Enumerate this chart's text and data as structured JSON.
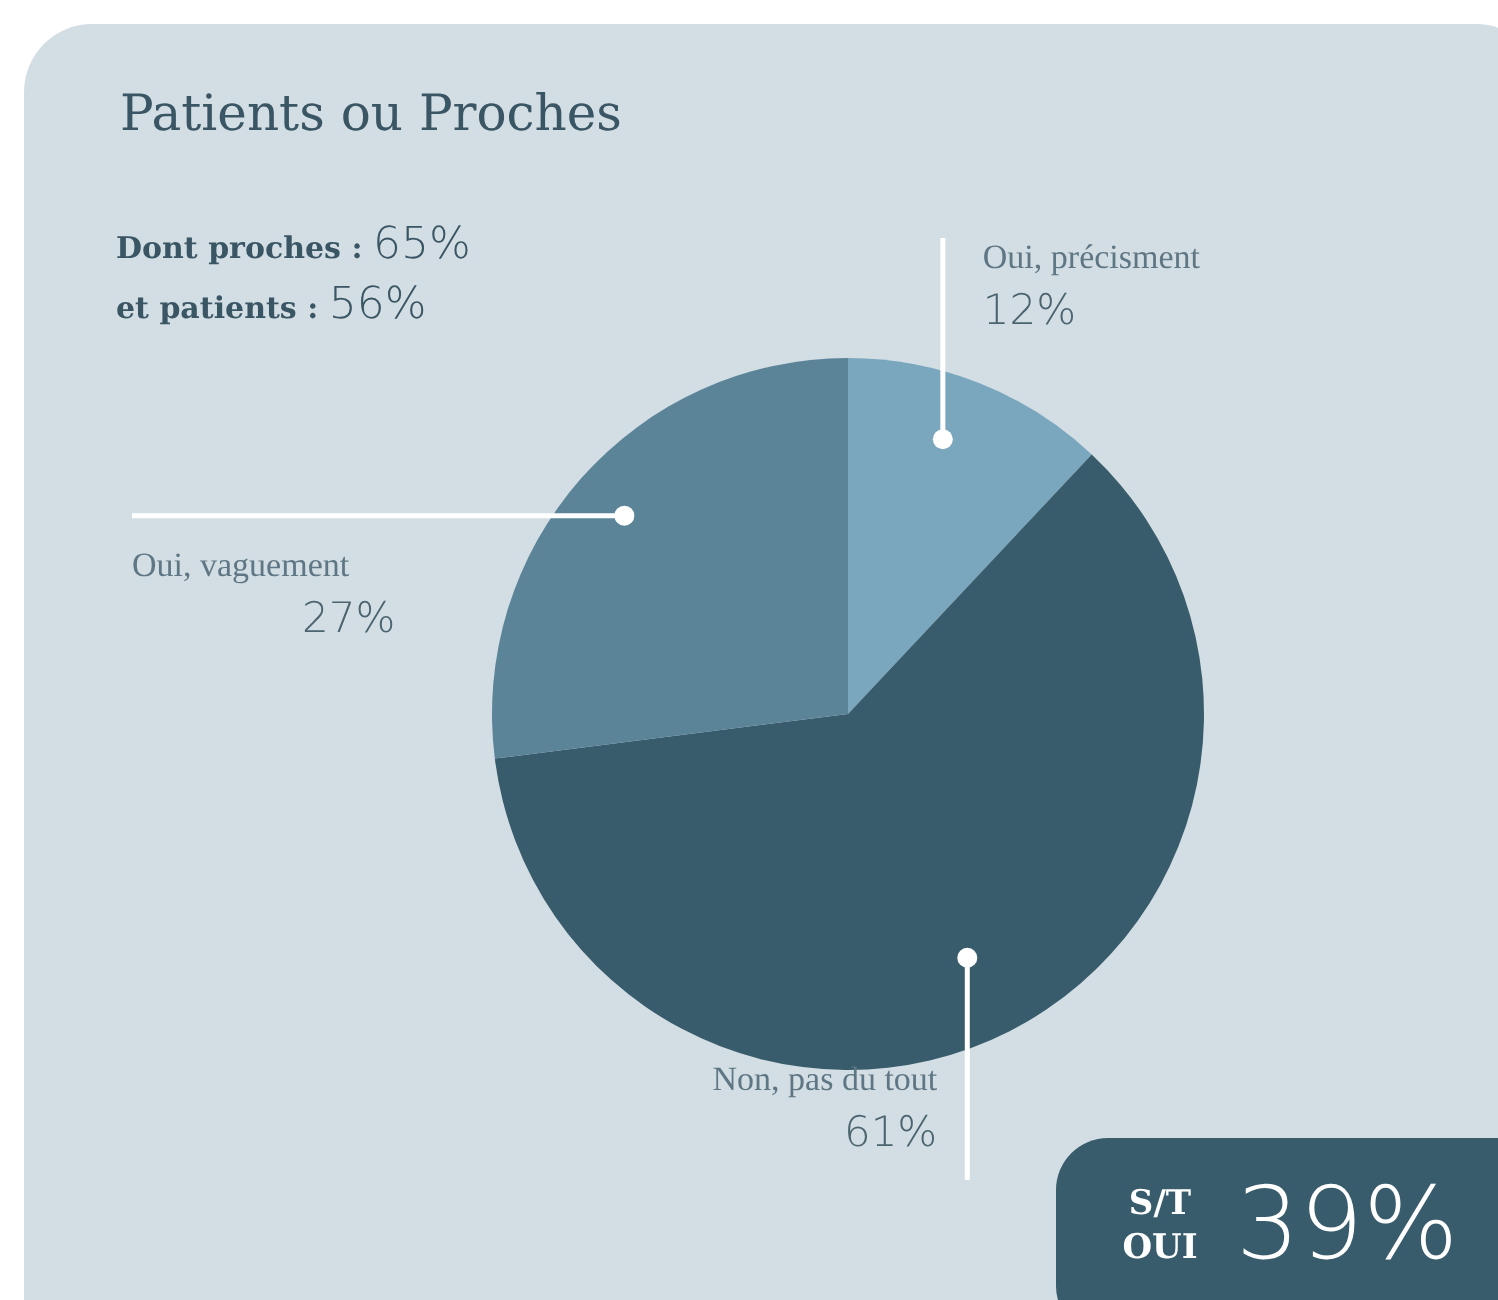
{
  "chart_data": {
    "type": "pie",
    "title": "Patients ou Proches",
    "categories": [
      "Oui, précisment",
      "Non, pas du tout",
      "Oui, vaguement"
    ],
    "values": [
      12,
      61,
      27
    ],
    "value_labels": [
      "12%",
      "61%",
      "27%"
    ],
    "colors": [
      "#7aa7be",
      "#385c6c",
      "#5b8498"
    ],
    "legend": false,
    "annotations": [
      "Dont proches : 65%",
      "et patients : 56%",
      "S/T OUI 39%"
    ]
  }
}
